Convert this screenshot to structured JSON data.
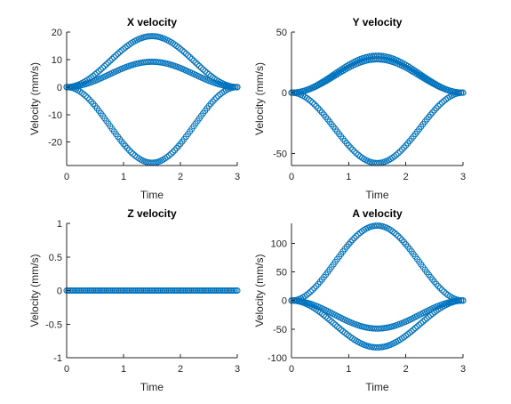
{
  "figure": {
    "marker_color": "#0072BD",
    "axis_color": "#262626"
  },
  "chart_data": [
    {
      "type": "scatter",
      "title": "X velocity",
      "xlabel": "Time",
      "ylabel": "Velocity (mm/s)",
      "xlim": [
        0,
        3
      ],
      "ylim": [
        -28.5,
        20
      ],
      "xticks": [
        "0",
        "1",
        "2",
        "3"
      ],
      "yticks": [
        20,
        10,
        0,
        -10,
        -20
      ],
      "series": [
        {
          "peak": 18.5,
          "t_end": 3.0
        },
        {
          "peak": 9.2,
          "t_end": 3.0
        },
        {
          "peak": -27.5,
          "t_end": 3.0
        }
      ]
    },
    {
      "type": "scatter",
      "title": "Y velocity",
      "xlabel": "Time",
      "ylabel": "Velocity (mm/s)",
      "xlim": [
        0,
        3
      ],
      "ylim": [
        -60,
        50
      ],
      "xticks": [
        "0",
        "1",
        "2",
        "3"
      ],
      "yticks": [
        50,
        0,
        -50
      ],
      "series": [
        {
          "peak": 30.5,
          "t_end": 3.0
        },
        {
          "peak": 27.5,
          "t_end": 3.0
        },
        {
          "peak": -58,
          "t_end": 3.0
        }
      ]
    },
    {
      "type": "scatter",
      "title": "Z velocity",
      "xlabel": "Time",
      "ylabel": "Velocity (mm/s)",
      "xlim": [
        0,
        3
      ],
      "ylim": [
        -1,
        1
      ],
      "xticks": [
        "0",
        "1",
        "2",
        "3"
      ],
      "yticks": [
        1,
        0.5,
        0,
        -0.5,
        -1
      ],
      "series": [
        {
          "peak": 0,
          "t_end": 3.0
        }
      ]
    },
    {
      "type": "scatter",
      "title": "A velocity",
      "xlabel": "Time",
      "ylabel": "Velocity (mm/s)",
      "xlim": [
        0,
        3
      ],
      "ylim": [
        -100,
        135
      ],
      "xticks": [
        "0",
        "1",
        "2",
        "3"
      ],
      "yticks": [
        100,
        50,
        0,
        -50,
        -100
      ],
      "series": [
        {
          "peak": 131,
          "t_end": 3.0
        },
        {
          "peak": -49,
          "t_end": 3.0
        },
        {
          "peak": -82,
          "t_end": 3.0
        }
      ]
    }
  ]
}
